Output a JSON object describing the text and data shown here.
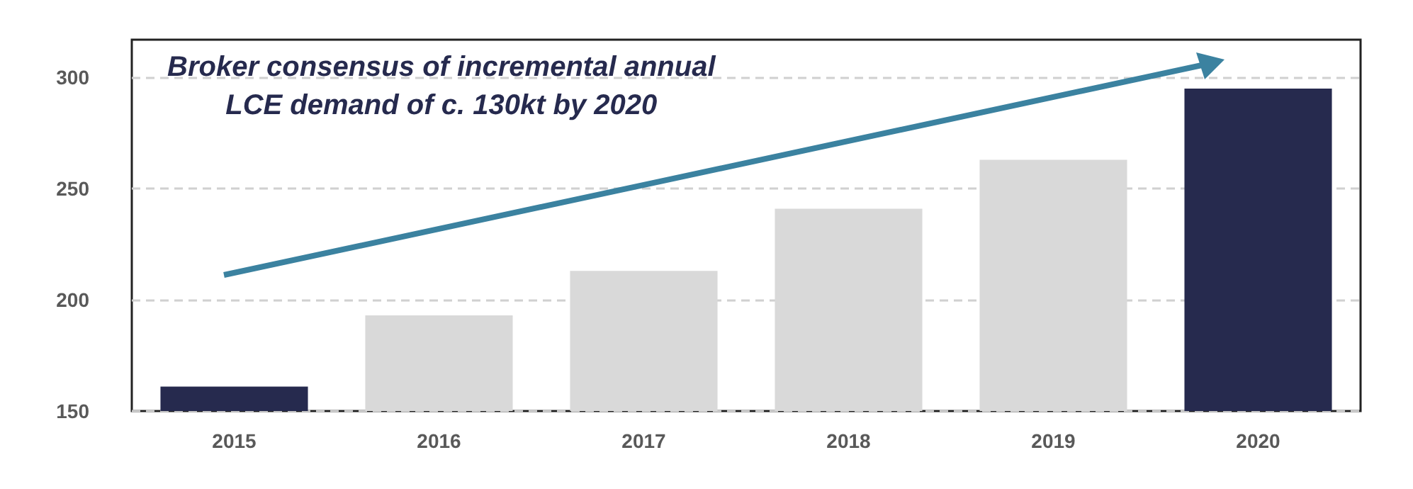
{
  "chart_data": {
    "type": "bar",
    "categories": [
      "2015",
      "2016",
      "2017",
      "2018",
      "2019",
      "2020"
    ],
    "values": [
      161,
      193,
      213,
      241,
      263,
      295
    ],
    "colors": [
      "#262a4e",
      "#d9d9d9",
      "#d9d9d9",
      "#d9d9d9",
      "#d9d9d9",
      "#262a4e"
    ],
    "ylim": [
      150,
      317
    ],
    "yticks": [
      150,
      200,
      250,
      300
    ],
    "grid": "y",
    "annotations": [
      "Broker consensus of incremental annual\nLCE demand of c. 130kt by 2020"
    ]
  }
}
